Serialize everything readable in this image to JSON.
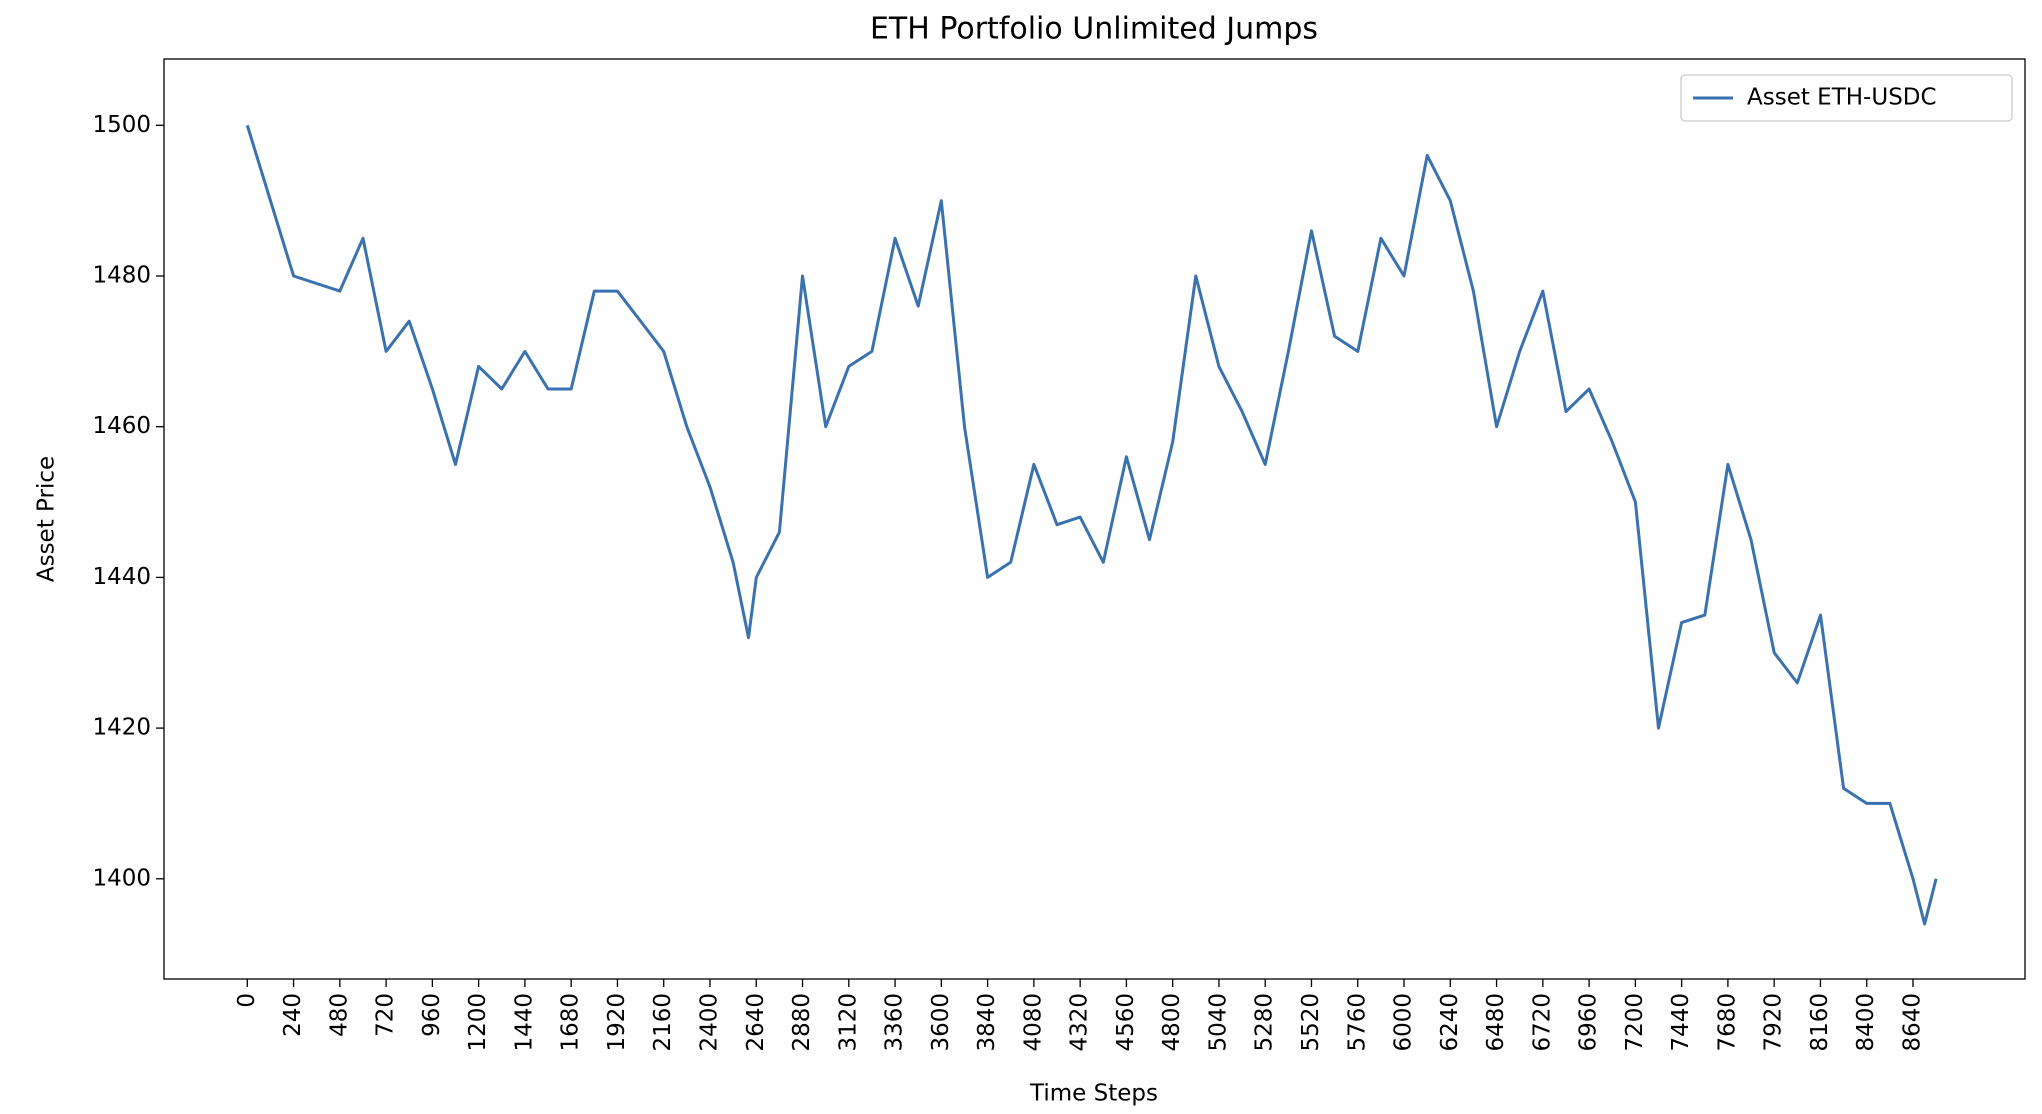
{
  "chart_data": {
    "type": "line",
    "title": "ETH Portfolio Unlimited Jumps",
    "x_label": "Time Steps",
    "y_label": "Asset Price",
    "x": [
      0,
      240,
      480,
      600,
      720,
      840,
      960,
      1080,
      1200,
      1320,
      1440,
      1560,
      1680,
      1800,
      1920,
      2040,
      2160,
      2280,
      2400,
      2520,
      2600,
      2640,
      2760,
      2880,
      3000,
      3120,
      3240,
      3360,
      3480,
      3600,
      3720,
      3840,
      3960,
      4080,
      4200,
      4320,
      4440,
      4560,
      4680,
      4800,
      4920,
      5040,
      5160,
      5280,
      5400,
      5520,
      5640,
      5760,
      5880,
      6000,
      6120,
      6240,
      6360,
      6480,
      6600,
      6720,
      6840,
      6960,
      7080,
      7200,
      7320,
      7440,
      7560,
      7680,
      7800,
      7920,
      8040,
      8160,
      8280,
      8400,
      8520,
      8640,
      8700,
      8760
    ],
    "series": [
      {
        "name": "Asset ETH-USDC",
        "color": "#3a72b0",
        "values": [
          1500,
          1480,
          1478,
          1485,
          1470,
          1474,
          1465,
          1455,
          1468,
          1465,
          1470,
          1465,
          1465,
          1478,
          1478,
          1474,
          1470,
          1460,
          1452,
          1442,
          1432,
          1440,
          1446,
          1480,
          1460,
          1468,
          1470,
          1485,
          1476,
          1490,
          1460,
          1440,
          1442,
          1455,
          1447,
          1448,
          1442,
          1456,
          1445,
          1458,
          1480,
          1468,
          1462,
          1455,
          1470,
          1486,
          1472,
          1470,
          1485,
          1480,
          1496,
          1490,
          1478,
          1460,
          1470,
          1478,
          1462,
          1465,
          1458,
          1450,
          1420,
          1434,
          1435,
          1455,
          1445,
          1430,
          1426,
          1435,
          1412,
          1410,
          1410,
          1400,
          1394,
          1400
        ]
      }
    ],
    "xlim": [
      -432,
      9221
    ],
    "ylim": [
      1386.7,
      1508.8
    ],
    "xticks": [
      0,
      240,
      480,
      720,
      960,
      1200,
      1440,
      1680,
      1920,
      2160,
      2400,
      2640,
      2880,
      3120,
      3360,
      3600,
      3840,
      4080,
      4320,
      4560,
      4800,
      5040,
      5280,
      5520,
      5760,
      6000,
      6240,
      6480,
      6720,
      6960,
      7200,
      7440,
      7680,
      7920,
      8160,
      8400,
      8640
    ],
    "yticks": [
      1400,
      1420,
      1440,
      1460,
      1480,
      1500
    ],
    "grid": false,
    "legend": "upper right"
  }
}
